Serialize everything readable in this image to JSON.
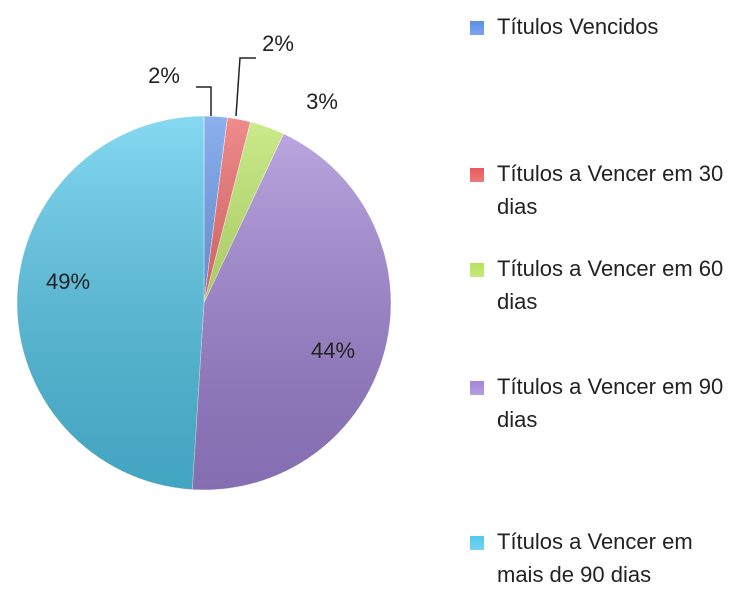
{
  "chart_data": {
    "type": "pie",
    "categories": [
      "Títulos Vencidos",
      "Títulos a Vencer em 30 dias",
      "Títulos a Vencer em 60 dias",
      "Títulos a Vencer em 90 dias",
      "Títulos a Vencer em mais de 90 dias"
    ],
    "values": [
      2,
      2,
      3,
      44,
      49
    ],
    "value_labels": [
      "2%",
      "2%",
      "3%",
      "44%",
      "49%"
    ],
    "colors": [
      "#5b8ee6",
      "#e85a5a",
      "#b6e35c",
      "#a285d8",
      "#52c9ec"
    ],
    "legend": "right"
  }
}
